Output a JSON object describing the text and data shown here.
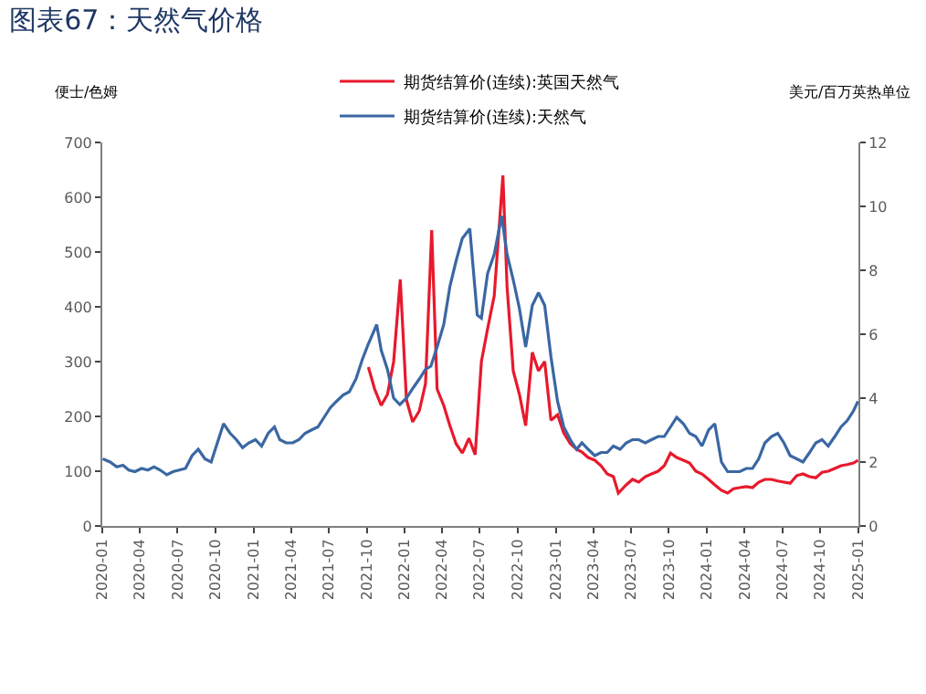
{
  "chart_data": {
    "type": "line",
    "title": "图表67：天然气价格",
    "ylabel": "便士/色姆",
    "y2label": "美元/百万英热单位",
    "xlim": [
      "2020-01",
      "2025-01"
    ],
    "xticks": [
      "2020-01",
      "2020-04",
      "2020-07",
      "2020-10",
      "2021-01",
      "2021-04",
      "2021-07",
      "2021-10",
      "2022-01",
      "2022-04",
      "2022-07",
      "2022-10",
      "2023-01",
      "2023-04",
      "2023-07",
      "2023-10",
      "2024-01",
      "2024-04",
      "2024-07",
      "2024-10",
      "2025-01"
    ],
    "ylim": [
      0,
      700
    ],
    "yticks": [
      0,
      100,
      200,
      300,
      400,
      500,
      600,
      700
    ],
    "y2lim": [
      0,
      12
    ],
    "y2ticks": [
      0,
      2,
      4,
      6,
      8,
      10,
      12
    ],
    "legend": "top",
    "series": [
      {
        "name": "期货结算价(连续):英国天然气",
        "color": "#e8192c",
        "axis": "y",
        "x": [
          "2021-10-05",
          "2021-10-20",
          "2021-11-05",
          "2021-11-20",
          "2021-12-05",
          "2021-12-21",
          "2022-01-05",
          "2022-01-20",
          "2022-02-05",
          "2022-02-20",
          "2022-03-07",
          "2022-03-20",
          "2022-04-05",
          "2022-04-20",
          "2022-05-05",
          "2022-05-20",
          "2022-06-05",
          "2022-06-20",
          "2022-07-05",
          "2022-07-20",
          "2022-08-05",
          "2022-08-26",
          "2022-09-05",
          "2022-09-20",
          "2022-10-05",
          "2022-10-20",
          "2022-11-05",
          "2022-11-20",
          "2022-12-05",
          "2022-12-20",
          "2023-01-05",
          "2023-01-20",
          "2023-02-05",
          "2023-02-20",
          "2023-03-05",
          "2023-03-20",
          "2023-04-05",
          "2023-04-20",
          "2023-05-05",
          "2023-05-20",
          "2023-06-01",
          "2023-06-20",
          "2023-07-05",
          "2023-07-20",
          "2023-08-05",
          "2023-08-20",
          "2023-09-05",
          "2023-09-20",
          "2023-10-05",
          "2023-10-20",
          "2023-11-05",
          "2023-11-20",
          "2023-12-05",
          "2023-12-20",
          "2024-01-05",
          "2024-01-20",
          "2024-02-05",
          "2024-02-20",
          "2024-03-05",
          "2024-03-20",
          "2024-04-05",
          "2024-04-20",
          "2024-05-05",
          "2024-05-20",
          "2024-06-05",
          "2024-06-20",
          "2024-07-05",
          "2024-07-20",
          "2024-08-05",
          "2024-08-20",
          "2024-09-05",
          "2024-09-20",
          "2024-10-05",
          "2024-10-20",
          "2024-11-05",
          "2024-11-20",
          "2024-12-05",
          "2024-12-20",
          "2024-12-31"
        ],
        "values": [
          290,
          250,
          220,
          240,
          300,
          450,
          230,
          190,
          210,
          260,
          540,
          250,
          220,
          183,
          150,
          133,
          160,
          130,
          300,
          360,
          420,
          640,
          437,
          283,
          240,
          183,
          317,
          283,
          300,
          193,
          203,
          170,
          150,
          140,
          135,
          125,
          120,
          110,
          95,
          90,
          60,
          75,
          85,
          80,
          90,
          95,
          100,
          110,
          133,
          125,
          120,
          115,
          100,
          95,
          85,
          75,
          65,
          60,
          68,
          70,
          72,
          70,
          80,
          85,
          85,
          82,
          80,
          78,
          92,
          95,
          90,
          88,
          98,
          100,
          105,
          110,
          112,
          115,
          120
        ]
      },
      {
        "name": "期货结算价(连续):天然气",
        "color": "#3a67a3",
        "axis": "y2",
        "x": [
          "2020-01-02",
          "2020-01-20",
          "2020-02-05",
          "2020-02-20",
          "2020-03-05",
          "2020-03-20",
          "2020-04-05",
          "2020-04-20",
          "2020-05-05",
          "2020-05-20",
          "2020-06-05",
          "2020-06-20",
          "2020-07-05",
          "2020-07-20",
          "2020-08-05",
          "2020-08-20",
          "2020-09-05",
          "2020-09-20",
          "2020-10-05",
          "2020-10-20",
          "2020-11-05",
          "2020-11-20",
          "2020-12-05",
          "2020-12-20",
          "2021-01-05",
          "2021-01-20",
          "2021-02-05",
          "2021-02-20",
          "2021-03-05",
          "2021-03-20",
          "2021-04-05",
          "2021-04-20",
          "2021-05-05",
          "2021-05-20",
          "2021-06-05",
          "2021-06-20",
          "2021-07-05",
          "2021-07-20",
          "2021-08-05",
          "2021-08-20",
          "2021-09-05",
          "2021-09-20",
          "2021-10-05",
          "2021-10-25",
          "2021-11-05",
          "2021-11-20",
          "2021-12-05",
          "2021-12-20",
          "2022-01-05",
          "2022-01-20",
          "2022-02-05",
          "2022-02-20",
          "2022-03-05",
          "2022-03-20",
          "2022-04-05",
          "2022-04-20",
          "2022-05-05",
          "2022-05-20",
          "2022-06-07",
          "2022-06-25",
          "2022-07-05",
          "2022-07-20",
          "2022-08-05",
          "2022-08-23",
          "2022-09-05",
          "2022-09-20",
          "2022-10-05",
          "2022-10-20",
          "2022-11-05",
          "2022-11-20",
          "2022-12-05",
          "2022-12-20",
          "2023-01-05",
          "2023-01-20",
          "2023-02-05",
          "2023-02-20",
          "2023-03-05",
          "2023-03-20",
          "2023-04-05",
          "2023-04-20",
          "2023-05-05",
          "2023-05-20",
          "2023-06-05",
          "2023-06-20",
          "2023-07-05",
          "2023-07-20",
          "2023-08-05",
          "2023-08-20",
          "2023-09-05",
          "2023-09-20",
          "2023-10-05",
          "2023-10-20",
          "2023-11-05",
          "2023-11-20",
          "2023-12-05",
          "2023-12-20",
          "2024-01-05",
          "2024-01-20",
          "2024-02-05",
          "2024-02-20",
          "2024-03-05",
          "2024-03-20",
          "2024-04-05",
          "2024-04-20",
          "2024-05-05",
          "2024-05-20",
          "2024-06-05",
          "2024-06-20",
          "2024-07-05",
          "2024-07-20",
          "2024-08-05",
          "2024-08-20",
          "2024-09-05",
          "2024-09-20",
          "2024-10-05",
          "2024-10-20",
          "2024-11-05",
          "2024-11-20",
          "2024-12-05",
          "2024-12-20",
          "2024-12-31"
        ],
        "values": [
          2.1,
          2.0,
          1.85,
          1.9,
          1.75,
          1.7,
          1.8,
          1.75,
          1.85,
          1.75,
          1.6,
          1.7,
          1.75,
          1.8,
          2.2,
          2.4,
          2.1,
          2.0,
          2.6,
          3.2,
          2.9,
          2.7,
          2.45,
          2.6,
          2.7,
          2.5,
          2.9,
          3.1,
          2.7,
          2.6,
          2.6,
          2.7,
          2.9,
          3.0,
          3.1,
          3.4,
          3.7,
          3.9,
          4.1,
          4.2,
          4.6,
          5.2,
          5.7,
          6.3,
          5.5,
          4.9,
          4.0,
          3.8,
          4.0,
          4.3,
          4.6,
          4.9,
          5.0,
          5.6,
          6.3,
          7.5,
          8.3,
          9.0,
          9.3,
          6.6,
          6.5,
          7.9,
          8.5,
          9.7,
          8.5,
          7.7,
          6.8,
          5.6,
          6.9,
          7.3,
          6.9,
          5.3,
          3.9,
          3.1,
          2.7,
          2.4,
          2.6,
          2.4,
          2.2,
          2.3,
          2.3,
          2.5,
          2.4,
          2.6,
          2.7,
          2.7,
          2.6,
          2.7,
          2.8,
          2.8,
          3.1,
          3.4,
          3.2,
          2.9,
          2.8,
          2.5,
          3.0,
          3.2,
          2.0,
          1.7,
          1.7,
          1.7,
          1.8,
          1.8,
          2.1,
          2.6,
          2.8,
          2.9,
          2.6,
          2.2,
          2.1,
          2.0,
          2.3,
          2.6,
          2.7,
          2.5,
          2.8,
          3.1,
          3.3,
          3.6,
          3.9
        ]
      }
    ]
  }
}
